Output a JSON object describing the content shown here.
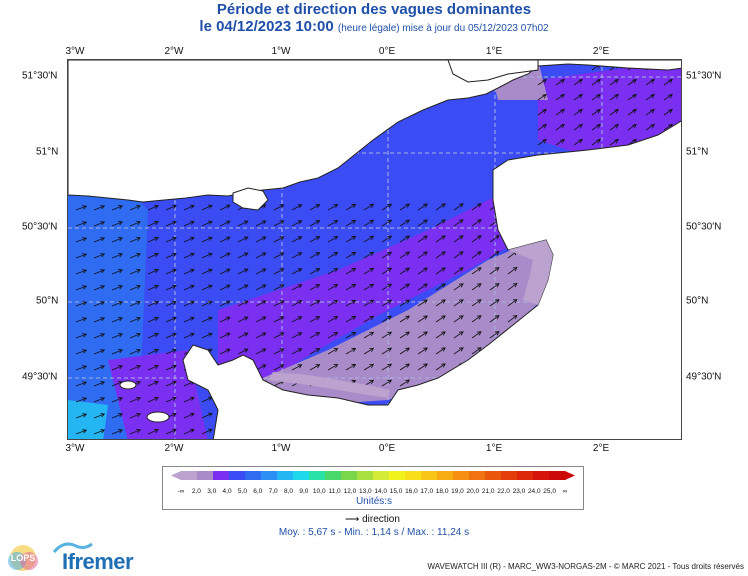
{
  "header": {
    "title": "Période et direction des vagues dominantes",
    "date_label": "le 04/12/2023 10:00",
    "update_note": "(heure légale) mise à jour du 05/12/2023 07h02"
  },
  "map": {
    "lon_ticks": [
      "3°W",
      "2°W",
      "1°W",
      "0°E",
      "1°E",
      "2°E"
    ],
    "lat_ticks": [
      "51°30'N",
      "51°N",
      "50°30'N",
      "50°N",
      "49°30'N"
    ],
    "colors": {
      "land": "#ffffff",
      "grid": "#aab4e0",
      "coast": "#222222",
      "arrow": "#111111"
    },
    "field_note": "Wave period field, blue (~6–7 s) in the west and central Channel, violet (~4–5 s) along the French coast and Dover Strait, light mauve (~2–3 s) close to shore, cyan near the Channel Islands"
  },
  "legend": {
    "labels": [
      "-∞",
      "2,0",
      "3,0",
      "4,0",
      "5,0",
      "6,0",
      "7,0",
      "8,0",
      "9,0",
      "10,0",
      "11,0",
      "12,0",
      "13,0",
      "14,0",
      "15,0",
      "16,0",
      "17,0",
      "18,0",
      "19,0",
      "20,0",
      "21,0",
      "22,0",
      "23,0",
      "24,0",
      "25,0",
      "∞"
    ],
    "colors": [
      "#bca3cf",
      "#a98bc9",
      "#7b2ff0",
      "#3b4cf4",
      "#2f6cf2",
      "#2d8ef4",
      "#23b6f2",
      "#1ed8ec",
      "#28e2a6",
      "#49d86a",
      "#7ad64a",
      "#a8e040",
      "#d4ec38",
      "#f3f31c",
      "#f8df1a",
      "#f8c617",
      "#f7ac14",
      "#f59012",
      "#f07210",
      "#e9560e",
      "#e33d0c",
      "#dc270b",
      "#d6140a",
      "#cc0808"
    ],
    "unit": "Unités:s",
    "direction_label": "direction"
  },
  "stats": {
    "text": "Moy. : 5,67 s   -   Min. : 1,14 s / Max. : 11,24 s"
  },
  "footer": {
    "credit": "WAVEWATCH III (R) - MARC_WW3-NORGAS-2M - © MARC 2021 - Tous droits réservés",
    "logo_left": "LOPS",
    "logo_right": "Ifremer"
  }
}
